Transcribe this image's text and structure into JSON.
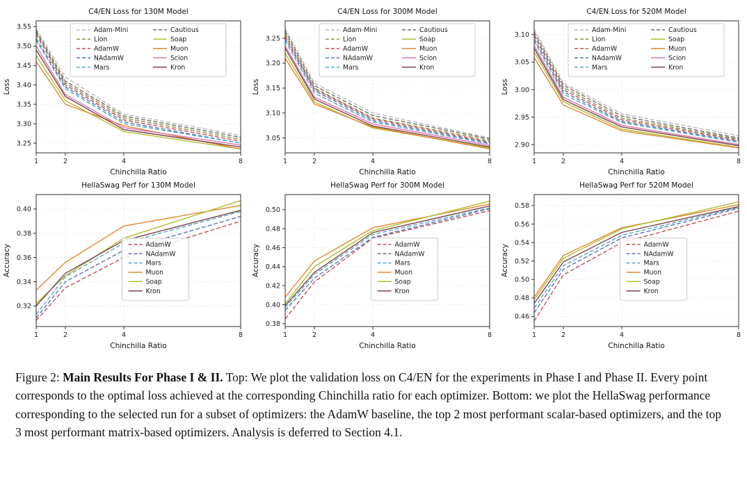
{
  "caption": {
    "prefix": "Figure 2: ",
    "bold": "Main Results For Phase I & II.",
    "body": " Top: We plot the validation loss on C4/EN for the experiments in Phase I and Phase II. Every point corresponds to the optimal loss achieved at the corresponding Chinchilla ratio for each optimizer. Bottom: we plot the HellaSwag performance corresponding to the selected run for a subset of optimizers: the AdamW baseline, the top 2 most performant scalar-based optimizers, and the top 3 most performant matrix-based optimizers. Analysis is deferred to Section 4.1."
  },
  "colors": {
    "adam_mini": "#b8b8b8",
    "lion": "#8f8f3f",
    "adamw": "#c44e52",
    "nadamw": "#5875b4",
    "mars": "#4fa7c6",
    "cautious": "#6e6e6e",
    "soap": "#b0bc2e",
    "muon": "#e5862c",
    "scion": "#d977b4",
    "kron": "#7a4348"
  },
  "chart_data": [
    {
      "type": "line",
      "title": "C4/EN Loss for 130M Model",
      "xlabel": "Chinchilla Ratio",
      "ylabel": "Loss",
      "x": [
        1,
        2,
        4,
        8
      ],
      "xticks": [
        1,
        2,
        4,
        8
      ],
      "xlim": [
        1,
        8
      ],
      "ylim": [
        3.225,
        3.565
      ],
      "yticks": [
        3.25,
        3.3,
        3.35,
        3.4,
        3.45,
        3.5,
        3.55
      ],
      "grid": true,
      "legend_cols": 2,
      "legend_position": "upper center",
      "series": [
        {
          "name": "Adam-Mini",
          "color": "#b8b8b8",
          "dash": true,
          "values": [
            3.545,
            3.42,
            3.325,
            3.27
          ]
        },
        {
          "name": "Lion",
          "color": "#8f8f3f",
          "dash": true,
          "values": [
            3.535,
            3.405,
            3.315,
            3.26
          ]
        },
        {
          "name": "AdamW",
          "color": "#c44e52",
          "dash": true,
          "values": [
            3.53,
            3.4,
            3.31,
            3.255
          ]
        },
        {
          "name": "NAdamW",
          "color": "#5875b4",
          "dash": true,
          "values": [
            3.52,
            3.395,
            3.305,
            3.25
          ]
        },
        {
          "name": "Mars",
          "color": "#4fa7c6",
          "dash": true,
          "values": [
            3.515,
            3.39,
            3.3,
            3.25
          ]
        },
        {
          "name": "Cautious",
          "color": "#6e6e6e",
          "dash": true,
          "values": [
            3.54,
            3.41,
            3.32,
            3.265
          ]
        },
        {
          "name": "Soap",
          "color": "#b0bc2e",
          "dash": false,
          "values": [
            3.475,
            3.36,
            3.28,
            3.235
          ]
        },
        {
          "name": "Muon",
          "color": "#e5862c",
          "dash": false,
          "values": [
            3.46,
            3.35,
            3.295,
            3.235
          ]
        },
        {
          "name": "Scion",
          "color": "#d977b4",
          "dash": false,
          "values": [
            3.5,
            3.375,
            3.29,
            3.245
          ]
        },
        {
          "name": "Kron",
          "color": "#7a4348",
          "dash": false,
          "values": [
            3.49,
            3.37,
            3.285,
            3.24
          ]
        }
      ]
    },
    {
      "type": "line",
      "title": "C4/EN Loss for 300M Model",
      "xlabel": "Chinchilla Ratio",
      "ylabel": "Loss",
      "x": [
        1,
        2,
        4,
        8
      ],
      "xticks": [
        1,
        2,
        4,
        8
      ],
      "xlim": [
        1,
        8
      ],
      "ylim": [
        3.02,
        3.285
      ],
      "yticks": [
        3.05,
        3.1,
        3.15,
        3.2,
        3.25
      ],
      "grid": true,
      "legend_cols": 2,
      "legend_position": "upper center",
      "series": [
        {
          "name": "Adam-Mini",
          "color": "#b8b8b8",
          "dash": true,
          "values": [
            3.27,
            3.16,
            3.1,
            3.05
          ]
        },
        {
          "name": "Lion",
          "color": "#8f8f3f",
          "dash": true,
          "values": [
            3.26,
            3.15,
            3.09,
            3.045
          ]
        },
        {
          "name": "AdamW",
          "color": "#c44e52",
          "dash": true,
          "values": [
            3.255,
            3.148,
            3.088,
            3.042
          ]
        },
        {
          "name": "NAdamW",
          "color": "#5875b4",
          "dash": true,
          "values": [
            3.25,
            3.145,
            3.085,
            3.04
          ]
        },
        {
          "name": "Mars",
          "color": "#4fa7c6",
          "dash": true,
          "values": [
            3.245,
            3.14,
            3.082,
            3.038
          ]
        },
        {
          "name": "Cautious",
          "color": "#6e6e6e",
          "dash": true,
          "values": [
            3.265,
            3.155,
            3.095,
            3.048
          ]
        },
        {
          "name": "Soap",
          "color": "#b0bc2e",
          "dash": false,
          "values": [
            3.22,
            3.122,
            3.07,
            3.03
          ]
        },
        {
          "name": "Muon",
          "color": "#e5862c",
          "dash": false,
          "values": [
            3.21,
            3.118,
            3.072,
            3.028
          ]
        },
        {
          "name": "Scion",
          "color": "#d977b4",
          "dash": false,
          "values": [
            3.235,
            3.132,
            3.078,
            3.035
          ]
        },
        {
          "name": "Kron",
          "color": "#7a4348",
          "dash": false,
          "values": [
            3.23,
            3.128,
            3.074,
            3.032
          ]
        }
      ]
    },
    {
      "type": "line",
      "title": "C4/EN Loss for 520M Model",
      "xlabel": "Chinchilla Ratio",
      "ylabel": "Loss",
      "x": [
        1,
        2,
        4,
        8
      ],
      "xticks": [
        1,
        2,
        4,
        8
      ],
      "xlim": [
        1,
        8
      ],
      "ylim": [
        2.885,
        3.125
      ],
      "yticks": [
        2.9,
        2.95,
        3.0,
        3.05,
        3.1
      ],
      "grid": true,
      "legend_cols": 2,
      "legend_position": "upper center",
      "series": [
        {
          "name": "Adam-Mini",
          "color": "#b8b8b8",
          "dash": true,
          "values": [
            3.11,
            3.012,
            2.956,
            2.916
          ]
        },
        {
          "name": "Lion",
          "color": "#8f8f3f",
          "dash": true,
          "values": [
            3.1,
            3.004,
            2.948,
            2.91
          ]
        },
        {
          "name": "AdamW",
          "color": "#c44e52",
          "dash": true,
          "values": [
            3.098,
            3.0,
            2.945,
            2.908
          ]
        },
        {
          "name": "NAdamW",
          "color": "#5875b4",
          "dash": true,
          "values": [
            3.092,
            2.996,
            2.942,
            2.906
          ]
        },
        {
          "name": "Mars",
          "color": "#4fa7c6",
          "dash": true,
          "values": [
            3.088,
            2.992,
            2.94,
            2.904
          ]
        },
        {
          "name": "Cautious",
          "color": "#6e6e6e",
          "dash": true,
          "values": [
            3.105,
            3.008,
            2.952,
            2.912
          ]
        },
        {
          "name": "Soap",
          "color": "#b0bc2e",
          "dash": false,
          "values": [
            3.068,
            2.978,
            2.928,
            2.895
          ]
        },
        {
          "name": "Muon",
          "color": "#e5862c",
          "dash": false,
          "values": [
            3.058,
            2.972,
            2.925,
            2.894
          ]
        },
        {
          "name": "Scion",
          "color": "#d977b4",
          "dash": false,
          "values": [
            3.08,
            2.986,
            2.935,
            2.9
          ]
        },
        {
          "name": "Kron",
          "color": "#7a4348",
          "dash": false,
          "values": [
            3.075,
            2.982,
            2.932,
            2.898
          ]
        }
      ]
    },
    {
      "type": "line",
      "title": "HellaSwag Perf for 130M Model",
      "xlabel": "Chinchilla Ratio",
      "ylabel": "Accuracy",
      "x": [
        1,
        2,
        4,
        8
      ],
      "xticks": [
        1,
        2,
        4,
        8
      ],
      "xlim": [
        1,
        8
      ],
      "ylim": [
        0.303,
        0.412
      ],
      "yticks": [
        0.32,
        0.34,
        0.36,
        0.38,
        0.4
      ],
      "grid": true,
      "legend_cols": 1,
      "legend_position": "center right",
      "series": [
        {
          "name": "AdamW",
          "color": "#c44e52",
          "dash": true,
          "values": [
            0.308,
            0.335,
            0.36,
            0.39
          ]
        },
        {
          "name": "NAdamW",
          "color": "#5875b4",
          "dash": true,
          "values": [
            0.31,
            0.34,
            0.366,
            0.394
          ]
        },
        {
          "name": "Mars",
          "color": "#4fa7c6",
          "dash": true,
          "values": [
            0.313,
            0.344,
            0.372,
            0.398
          ]
        },
        {
          "name": "Muon",
          "color": "#e5862c",
          "dash": false,
          "values": [
            0.333,
            0.356,
            0.386,
            0.403
          ]
        },
        {
          "name": "Soap",
          "color": "#b0bc2e",
          "dash": false,
          "values": [
            0.322,
            0.345,
            0.376,
            0.407
          ]
        },
        {
          "name": "Kron",
          "color": "#7a4348",
          "dash": false,
          "values": [
            0.32,
            0.347,
            0.374,
            0.399
          ]
        }
      ]
    },
    {
      "type": "line",
      "title": "HellaSwag Perf for 300M Model",
      "xlabel": "Chinchilla Ratio",
      "ylabel": "Accuracy",
      "x": [
        1,
        2,
        4,
        8
      ],
      "xticks": [
        1,
        2,
        4,
        8
      ],
      "xlim": [
        1,
        8
      ],
      "ylim": [
        0.377,
        0.516
      ],
      "yticks": [
        0.38,
        0.4,
        0.42,
        0.44,
        0.46,
        0.48,
        0.5
      ],
      "grid": true,
      "legend_cols": 1,
      "legend_position": "center right",
      "series": [
        {
          "name": "AdamW",
          "color": "#c44e52",
          "dash": true,
          "values": [
            0.385,
            0.424,
            0.47,
            0.499
          ]
        },
        {
          "name": "NAdamW",
          "color": "#5875b4",
          "dash": true,
          "values": [
            0.394,
            0.428,
            0.471,
            0.501
          ]
        },
        {
          "name": "Mars",
          "color": "#4fa7c6",
          "dash": true,
          "values": [
            0.397,
            0.432,
            0.474,
            0.502
          ]
        },
        {
          "name": "Muon",
          "color": "#e5862c",
          "dash": false,
          "values": [
            0.408,
            0.446,
            0.481,
            0.506
          ]
        },
        {
          "name": "Soap",
          "color": "#b0bc2e",
          "dash": false,
          "values": [
            0.401,
            0.44,
            0.478,
            0.509
          ]
        },
        {
          "name": "Kron",
          "color": "#7a4348",
          "dash": false,
          "values": [
            0.399,
            0.434,
            0.476,
            0.504
          ]
        }
      ]
    },
    {
      "type": "line",
      "title": "HellaSwag Perf for 520M Model",
      "xlabel": "Chinchilla Ratio",
      "ylabel": "Accuracy",
      "x": [
        1,
        2,
        4,
        8
      ],
      "xticks": [
        1,
        2,
        4,
        8
      ],
      "xlim": [
        1,
        8
      ],
      "ylim": [
        0.449,
        0.592
      ],
      "yticks": [
        0.46,
        0.48,
        0.5,
        0.52,
        0.54,
        0.56,
        0.58
      ],
      "grid": true,
      "legend_cols": 1,
      "legend_position": "center right",
      "series": [
        {
          "name": "AdamW",
          "color": "#c44e52",
          "dash": true,
          "values": [
            0.455,
            0.505,
            0.54,
            0.574
          ]
        },
        {
          "name": "NAdamW",
          "color": "#5875b4",
          "dash": true,
          "values": [
            0.464,
            0.511,
            0.545,
            0.577
          ]
        },
        {
          "name": "Mars",
          "color": "#4fa7c6",
          "dash": true,
          "values": [
            0.469,
            0.515,
            0.548,
            0.578
          ]
        },
        {
          "name": "Muon",
          "color": "#e5862c",
          "dash": false,
          "values": [
            0.481,
            0.526,
            0.556,
            0.581
          ]
        },
        {
          "name": "Soap",
          "color": "#b0bc2e",
          "dash": false,
          "values": [
            0.478,
            0.523,
            0.555,
            0.584
          ]
        },
        {
          "name": "Kron",
          "color": "#7a4348",
          "dash": false,
          "values": [
            0.474,
            0.519,
            0.551,
            0.579
          ]
        }
      ]
    }
  ]
}
